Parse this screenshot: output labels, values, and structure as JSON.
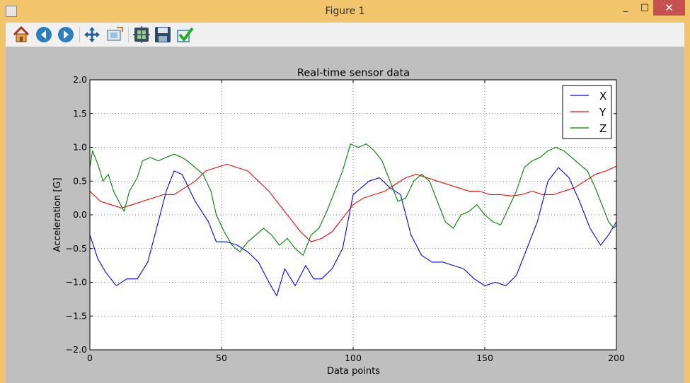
{
  "window": {
    "title": "Figure 1",
    "minimize": "_",
    "maximize": "□",
    "close": "✕"
  },
  "toolbar": {
    "buttons": [
      {
        "name": "home-button",
        "icon": "home-icon"
      },
      {
        "name": "back-button",
        "icon": "back-arrow-icon"
      },
      {
        "name": "forward-button",
        "icon": "forward-arrow-icon"
      },
      {
        "name": "pan-button",
        "icon": "pan-arrows-icon"
      },
      {
        "name": "zoom-button",
        "icon": "zoom-rect-icon"
      },
      {
        "name": "subplots-button",
        "icon": "subplots-icon"
      },
      {
        "name": "save-button",
        "icon": "floppy-disk-icon"
      },
      {
        "name": "apply-button",
        "icon": "checkmark-icon"
      }
    ]
  },
  "colors": {
    "x": "#0000ff",
    "y": "#ff0000",
    "z": "#008000",
    "canvas": "#bfbfbf",
    "titlebar": "#f2c46c"
  },
  "chart_data": {
    "type": "line",
    "title": "Real-time sensor data",
    "xlabel": "Data points",
    "ylabel": "Acceleration [G]",
    "xlim": [
      0,
      200
    ],
    "ylim": [
      -2.0,
      2.0
    ],
    "xticks": [
      0,
      50,
      100,
      150,
      200
    ],
    "yticks": [
      -2.0,
      -1.5,
      -1.0,
      -0.5,
      0.0,
      0.5,
      1.0,
      1.5,
      2.0
    ],
    "ytick_labels": [
      "−2.0",
      "−1.5",
      "−1.0",
      "−0.5",
      "0.0",
      "0.5",
      "1.0",
      "1.5",
      "2.0"
    ],
    "grid": true,
    "legend_position": "top-right",
    "series": [
      {
        "name": "X",
        "color": "#0000ff",
        "x": [
          0,
          3,
          6,
          10,
          14,
          18,
          22,
          26,
          29,
          32,
          35,
          40,
          45,
          48,
          52,
          56,
          60,
          64,
          68,
          71,
          74,
          78,
          82,
          85,
          88,
          92,
          96,
          100,
          103,
          106,
          110,
          114,
          118,
          122,
          126,
          130,
          134,
          138,
          142,
          146,
          150,
          154,
          158,
          162,
          166,
          170,
          174,
          178,
          182,
          186,
          190,
          194,
          197,
          200
        ],
        "y": [
          -0.3,
          -0.65,
          -0.85,
          -1.05,
          -0.95,
          -0.95,
          -0.7,
          -0.1,
          0.35,
          0.65,
          0.6,
          0.2,
          -0.1,
          -0.4,
          -0.4,
          -0.45,
          -0.55,
          -0.7,
          -1.0,
          -1.2,
          -0.8,
          -1.05,
          -0.75,
          -0.95,
          -0.95,
          -0.8,
          -0.5,
          0.3,
          0.4,
          0.5,
          0.55,
          0.4,
          0.3,
          -0.3,
          -0.6,
          -0.7,
          -0.7,
          -0.75,
          -0.8,
          -0.95,
          -1.05,
          -1.0,
          -1.05,
          -0.9,
          -0.5,
          -0.1,
          0.5,
          0.7,
          0.55,
          0.2,
          -0.2,
          -0.45,
          -0.3,
          -0.1
        ]
      },
      {
        "name": "Y",
        "color": "#ff0000",
        "x": [
          0,
          4,
          8,
          12,
          16,
          20,
          24,
          28,
          32,
          36,
          40,
          44,
          48,
          52,
          56,
          60,
          64,
          68,
          72,
          76,
          80,
          84,
          88,
          92,
          96,
          100,
          104,
          108,
          112,
          116,
          120,
          124,
          128,
          132,
          136,
          140,
          144,
          148,
          152,
          156,
          160,
          164,
          168,
          172,
          176,
          180,
          184,
          188,
          192,
          196,
          200
        ],
        "y": [
          0.35,
          0.2,
          0.15,
          0.1,
          0.15,
          0.2,
          0.25,
          0.3,
          0.3,
          0.4,
          0.5,
          0.65,
          0.7,
          0.75,
          0.7,
          0.65,
          0.5,
          0.35,
          0.15,
          -0.05,
          -0.25,
          -0.4,
          -0.35,
          -0.25,
          -0.05,
          0.15,
          0.25,
          0.3,
          0.35,
          0.45,
          0.55,
          0.6,
          0.55,
          0.5,
          0.45,
          0.4,
          0.35,
          0.35,
          0.3,
          0.3,
          0.28,
          0.3,
          0.35,
          0.3,
          0.3,
          0.35,
          0.4,
          0.5,
          0.6,
          0.65,
          0.72
        ]
      },
      {
        "name": "Z",
        "color": "#008000",
        "x": [
          0,
          1,
          3,
          5,
          7,
          9,
          11,
          13,
          15,
          18,
          20,
          23,
          26,
          29,
          32,
          35,
          37,
          40,
          43,
          46,
          48,
          51,
          54,
          57,
          60,
          63,
          66,
          69,
          72,
          75,
          78,
          81,
          84,
          87,
          90,
          93,
          96,
          99,
          102,
          105,
          108,
          111,
          114,
          117,
          120,
          123,
          126,
          129,
          132,
          135,
          138,
          141,
          144,
          147,
          150,
          153,
          156,
          159,
          162,
          165,
          168,
          171,
          174,
          177,
          180,
          183,
          186,
          189,
          192,
          195,
          197,
          199,
          200
        ],
        "y": [
          0.7,
          0.95,
          0.75,
          0.5,
          0.6,
          0.35,
          0.2,
          0.05,
          0.35,
          0.55,
          0.8,
          0.85,
          0.8,
          0.85,
          0.9,
          0.85,
          0.8,
          0.7,
          0.6,
          0.35,
          0.0,
          -0.25,
          -0.45,
          -0.55,
          -0.4,
          -0.3,
          -0.2,
          -0.3,
          -0.45,
          -0.35,
          -0.5,
          -0.6,
          -0.3,
          -0.2,
          0.05,
          0.35,
          0.65,
          1.05,
          1.0,
          1.05,
          0.95,
          0.8,
          0.5,
          0.2,
          0.25,
          0.5,
          0.6,
          0.5,
          0.2,
          -0.1,
          -0.2,
          0.0,
          0.05,
          0.15,
          0.0,
          -0.1,
          -0.15,
          0.1,
          0.35,
          0.7,
          0.8,
          0.85,
          0.95,
          1.0,
          0.95,
          0.85,
          0.75,
          0.65,
          0.4,
          0.1,
          -0.1,
          -0.2,
          -0.15
        ]
      }
    ]
  }
}
